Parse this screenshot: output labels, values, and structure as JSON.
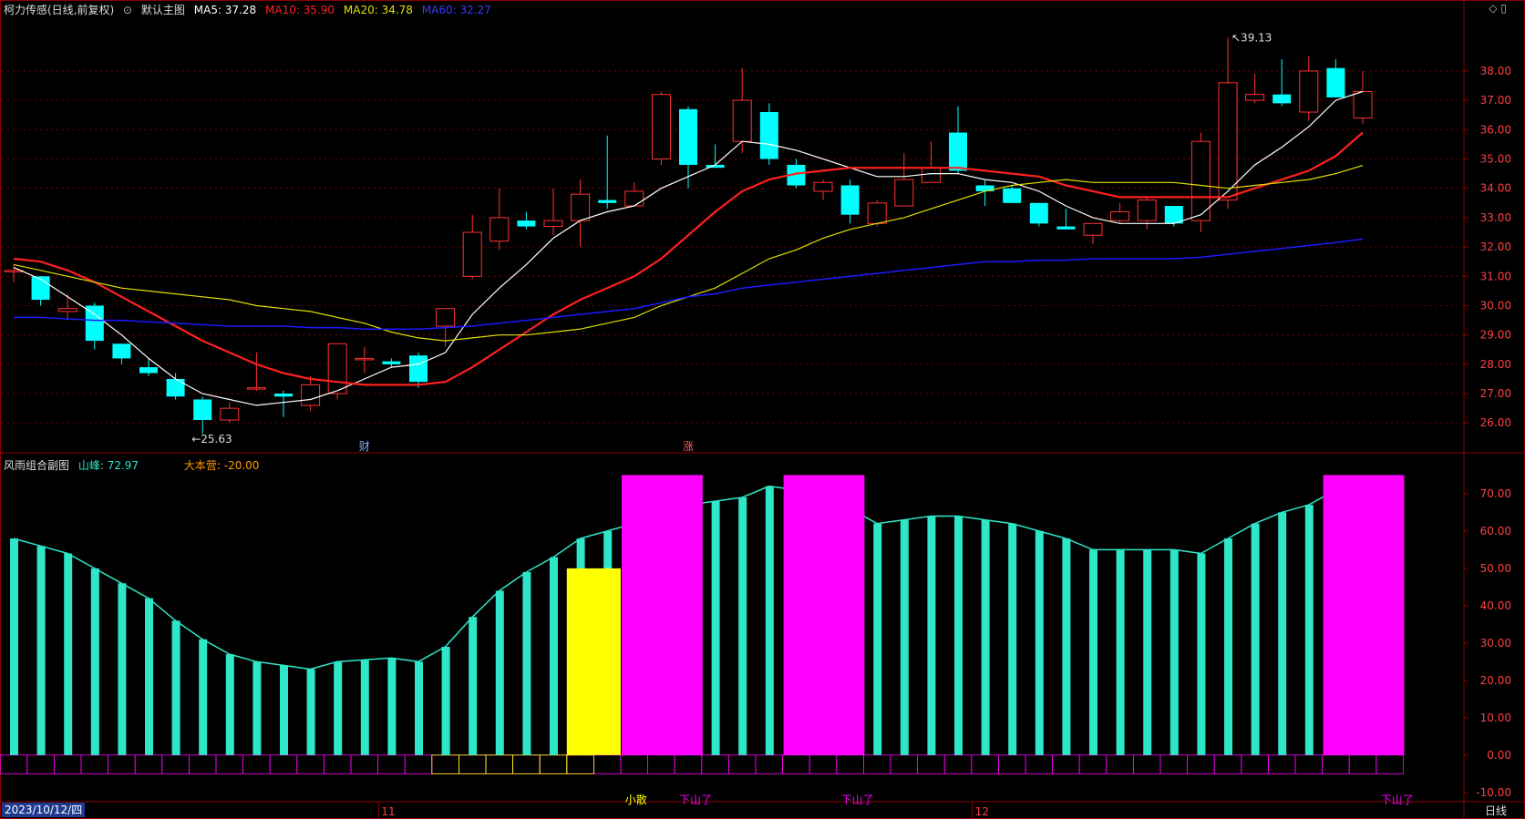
{
  "header": {
    "stock": "柯力传感(日线,前复权)",
    "main_chart_label": "默认主图",
    "ma5": "MA5: 37.28",
    "ma10": "MA10: 35.90",
    "ma20": "MA20: 34.78",
    "ma60": "MA60: 32.27"
  },
  "sub_header": {
    "title": "风雨组合副图",
    "peak": "山峰: 72.97",
    "camp": "大本营: -20.00"
  },
  "corner_symbols": "◇ ▯",
  "date_label": "2023/10/12/四",
  "period_label": "日线",
  "colors": {
    "up": "#ff3232",
    "down": "#00ffff",
    "ma5": "#ffffff",
    "ma10": "#ff2020",
    "ma20": "#e0e000",
    "ma60": "#1a1aff",
    "vol": "#2ee6c8",
    "magenta": "#ff00ff",
    "yellow": "#ffff00",
    "grid": "#8b0000",
    "axis_text": "#ff4040"
  },
  "chart_data": [
    {
      "type": "candlestick",
      "title": "柯力传感(日线,前复权)",
      "ylim": [
        25.2,
        39.8
      ],
      "yticks": [
        26,
        27,
        28,
        29,
        30,
        31,
        32,
        33,
        34,
        35,
        36,
        37,
        38
      ],
      "ytick_labels": [
        "26.00",
        "27.00",
        "28.00",
        "29.00",
        "30.00",
        "31.00",
        "32.00",
        "33.00",
        "34.00",
        "35.00",
        "36.00",
        "37.00",
        "38.00"
      ],
      "x_month_labels": [
        {
          "index": 14,
          "label": "11"
        },
        {
          "index": 36,
          "label": "12"
        }
      ],
      "annotations": [
        {
          "index": 13,
          "text": "财"
        },
        {
          "index": 25,
          "text": "涨"
        }
      ],
      "high_marker": {
        "index": 45,
        "value": 39.13,
        "text": "39.13"
      },
      "low_marker": {
        "index": 7,
        "value": 25.63,
        "text": "25.63"
      },
      "ohlc": [
        [
          31.2,
          31.4,
          30.8,
          31.2
        ],
        [
          31.0,
          31.0,
          30.0,
          30.2
        ],
        [
          29.8,
          30.4,
          29.5,
          29.9
        ],
        [
          30.0,
          30.1,
          28.5,
          28.8
        ],
        [
          28.7,
          28.7,
          28.0,
          28.2
        ],
        [
          27.9,
          28.2,
          27.6,
          27.7
        ],
        [
          27.5,
          27.7,
          26.8,
          26.9
        ],
        [
          26.8,
          26.9,
          25.63,
          26.1
        ],
        [
          26.1,
          26.7,
          26.0,
          26.5
        ],
        [
          27.2,
          28.4,
          27.1,
          27.2
        ],
        [
          27.0,
          27.1,
          26.2,
          26.9
        ],
        [
          26.6,
          27.6,
          26.4,
          27.3
        ],
        [
          27.0,
          28.7,
          26.8,
          28.7
        ],
        [
          28.2,
          28.6,
          27.7,
          28.2
        ],
        [
          28.1,
          28.2,
          27.9,
          28.0
        ],
        [
          28.3,
          28.4,
          27.2,
          27.4
        ],
        [
          29.3,
          29.9,
          28.6,
          29.9
        ],
        [
          31.0,
          33.1,
          30.9,
          32.5
        ],
        [
          32.2,
          34.0,
          31.9,
          33.0
        ],
        [
          32.9,
          33.2,
          32.6,
          32.7
        ],
        [
          32.7,
          34.0,
          32.4,
          32.9
        ],
        [
          32.9,
          34.3,
          32.0,
          33.8
        ],
        [
          33.6,
          35.8,
          33.3,
          33.5
        ],
        [
          33.4,
          34.2,
          33.4,
          33.9
        ],
        [
          35.0,
          37.3,
          34.8,
          37.2
        ],
        [
          36.7,
          36.8,
          34.0,
          34.8
        ],
        [
          34.8,
          35.5,
          34.7,
          34.7
        ],
        [
          35.6,
          38.1,
          35.2,
          37.0
        ],
        [
          36.6,
          36.9,
          34.8,
          35.0
        ],
        [
          34.8,
          35.0,
          34.0,
          34.1
        ],
        [
          33.9,
          34.3,
          33.6,
          34.2
        ],
        [
          34.1,
          34.3,
          32.8,
          33.1
        ],
        [
          32.8,
          33.6,
          32.7,
          33.5
        ],
        [
          33.4,
          35.2,
          33.4,
          34.3
        ],
        [
          34.2,
          35.6,
          34.2,
          34.7
        ],
        [
          35.9,
          36.8,
          34.5,
          34.6
        ],
        [
          34.1,
          34.3,
          33.4,
          33.9
        ],
        [
          34.0,
          34.1,
          33.5,
          33.5
        ],
        [
          33.5,
          33.5,
          32.7,
          32.8
        ],
        [
          32.7,
          33.3,
          32.6,
          32.6
        ],
        [
          32.4,
          32.8,
          32.1,
          32.8
        ],
        [
          32.9,
          33.5,
          32.8,
          33.2
        ],
        [
          32.9,
          33.7,
          32.6,
          33.6
        ],
        [
          33.4,
          33.4,
          32.7,
          32.8
        ],
        [
          32.9,
          35.9,
          32.5,
          35.6
        ],
        [
          33.6,
          39.13,
          33.3,
          37.6
        ],
        [
          37.0,
          37.9,
          36.9,
          37.2
        ],
        [
          37.2,
          38.4,
          36.8,
          36.9
        ],
        [
          36.6,
          38.5,
          36.3,
          38.0
        ],
        [
          38.1,
          38.4,
          37.1,
          37.1
        ],
        [
          36.4,
          38.0,
          36.2,
          37.3
        ]
      ],
      "series": [
        {
          "name": "MA5",
          "values": [
            31.3,
            30.9,
            30.3,
            29.7,
            29.0,
            28.2,
            27.5,
            27.0,
            26.8,
            26.6,
            26.7,
            26.8,
            27.1,
            27.5,
            27.9,
            28.0,
            28.4,
            29.7,
            30.6,
            31.4,
            32.3,
            32.9,
            33.2,
            33.4,
            34.0,
            34.4,
            34.8,
            35.6,
            35.5,
            35.3,
            35.0,
            34.7,
            34.4,
            34.4,
            34.5,
            34.5,
            34.3,
            34.2,
            33.9,
            33.4,
            33.0,
            32.8,
            32.8,
            32.8,
            33.1,
            33.9,
            34.8,
            35.4,
            36.1,
            37.0,
            37.3
          ]
        },
        {
          "name": "MA10",
          "values": [
            31.6,
            31.5,
            31.2,
            30.8,
            30.3,
            29.8,
            29.3,
            28.8,
            28.4,
            28.0,
            27.7,
            27.5,
            27.4,
            27.3,
            27.3,
            27.3,
            27.4,
            27.9,
            28.5,
            29.1,
            29.7,
            30.2,
            30.6,
            31.0,
            31.6,
            32.4,
            33.2,
            33.9,
            34.3,
            34.5,
            34.6,
            34.7,
            34.7,
            34.7,
            34.7,
            34.7,
            34.6,
            34.5,
            34.4,
            34.1,
            33.9,
            33.7,
            33.7,
            33.7,
            33.7,
            33.7,
            34.0,
            34.3,
            34.6,
            35.1,
            35.9
          ]
        },
        {
          "name": "MA20",
          "values": [
            31.4,
            31.2,
            31.0,
            30.8,
            30.6,
            30.5,
            30.4,
            30.3,
            30.2,
            30.0,
            29.9,
            29.8,
            29.6,
            29.4,
            29.1,
            28.9,
            28.8,
            28.9,
            29.0,
            29.0,
            29.1,
            29.2,
            29.4,
            29.6,
            30.0,
            30.3,
            30.6,
            31.1,
            31.6,
            31.9,
            32.3,
            32.6,
            32.8,
            33.0,
            33.3,
            33.6,
            33.9,
            34.1,
            34.2,
            34.3,
            34.2,
            34.2,
            34.2,
            34.2,
            34.1,
            34.0,
            34.1,
            34.2,
            34.3,
            34.5,
            34.78
          ]
        },
        {
          "name": "MA60",
          "values": [
            29.6,
            29.6,
            29.55,
            29.5,
            29.5,
            29.45,
            29.4,
            29.35,
            29.3,
            29.3,
            29.3,
            29.25,
            29.25,
            29.2,
            29.2,
            29.2,
            29.25,
            29.3,
            29.4,
            29.5,
            29.6,
            29.7,
            29.8,
            29.9,
            30.1,
            30.3,
            30.4,
            30.6,
            30.7,
            30.8,
            30.9,
            31.0,
            31.1,
            31.2,
            31.3,
            31.4,
            31.5,
            31.5,
            31.55,
            31.55,
            31.6,
            31.6,
            31.6,
            31.6,
            31.65,
            31.75,
            31.85,
            31.95,
            32.05,
            32.15,
            32.27
          ]
        }
      ]
    },
    {
      "type": "bar",
      "title": "风雨组合副图",
      "ylim": [
        -12,
        79
      ],
      "yticks": [
        -10,
        0,
        10,
        20,
        30,
        40,
        50,
        60,
        70
      ],
      "ytick_labels": [
        "-10.00",
        "0.00",
        "10.00",
        "20.00",
        "30.00",
        "40.00",
        "50.00",
        "60.00",
        "70.00"
      ],
      "series": [
        {
          "name": "山峰",
          "values": [
            58,
            56,
            54,
            50,
            46,
            42,
            36,
            31,
            27,
            25,
            24,
            23,
            25,
            25.5,
            26,
            25,
            29,
            37,
            44,
            49,
            53,
            58,
            60,
            62,
            64,
            67,
            68,
            69,
            72,
            71,
            69,
            66,
            62,
            63,
            64,
            64,
            63,
            62,
            60,
            58,
            55,
            55,
            55,
            55,
            54,
            58,
            62,
            65,
            67,
            71,
            73
          ]
        }
      ],
      "yellow_block": {
        "from_index": 21,
        "to_index": 22,
        "value": 50
      },
      "magenta_blocks": [
        {
          "from_index": 23,
          "to_index": 25,
          "value": 75
        },
        {
          "from_index": 29,
          "to_index": 31,
          "value": 75
        },
        {
          "from_index": 49,
          "to_index": 51,
          "value": 75
        }
      ],
      "yellow_outline_indices": [
        16,
        17,
        18,
        19,
        20,
        21
      ],
      "signal_labels": [
        {
          "index": 23,
          "text": "小散",
          "color": "#ffff00"
        },
        {
          "index": 25,
          "text": "下山了",
          "color": "#ff00ff"
        },
        {
          "index": 31,
          "text": "下山了",
          "color": "#ff00ff"
        },
        {
          "index": 51,
          "text": "下山了",
          "color": "#ff00ff"
        }
      ]
    }
  ]
}
